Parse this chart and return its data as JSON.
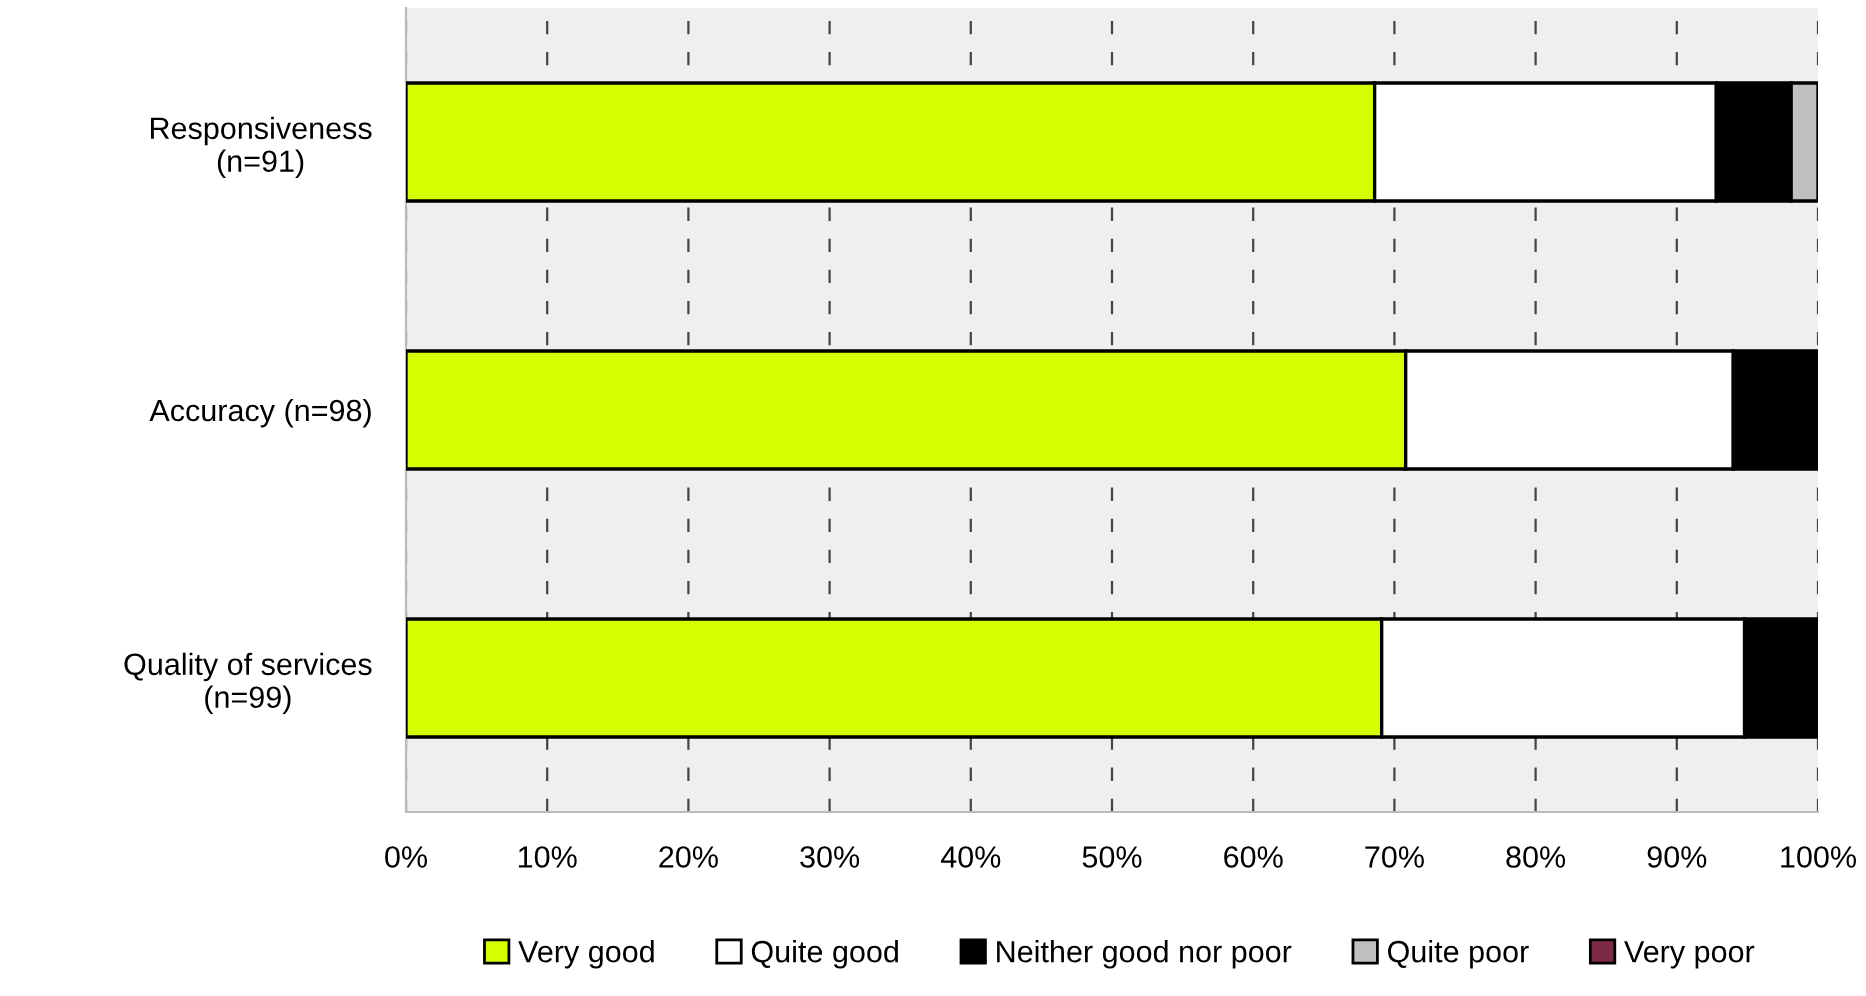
{
  "chart_data": {
    "type": "bar",
    "orientation": "horizontal",
    "stacked": true,
    "categories": [
      "Responsiveness\n(n=91)",
      "Accuracy (n=98)",
      "Quality of services\n(n=99)"
    ],
    "series": [
      {
        "name": "Very good",
        "color": "#d4ff00",
        "values": [
          68.6,
          70.8,
          69.1
        ]
      },
      {
        "name": "Quite good",
        "color": "#ffffff",
        "values": [
          24.2,
          23.2,
          25.7
        ]
      },
      {
        "name": "Neither good nor poor",
        "color": "#000000",
        "values": [
          5.3,
          6.0,
          5.2
        ]
      },
      {
        "name": "Quite poor",
        "color": "#c0c0c0",
        "values": [
          1.9,
          0,
          0
        ]
      },
      {
        "name": "Very poor",
        "color": "#7b2a45",
        "values": [
          0,
          0,
          0
        ]
      }
    ],
    "xlim": [
      0,
      100
    ],
    "xticks": [
      {
        "value": 0,
        "label": "0%"
      },
      {
        "value": 10,
        "label": "10%"
      },
      {
        "value": 20,
        "label": "20%"
      },
      {
        "value": 30,
        "label": "30%"
      },
      {
        "value": 40,
        "label": "40%"
      },
      {
        "value": 50,
        "label": "50%"
      },
      {
        "value": 60,
        "label": "60%"
      },
      {
        "value": 70,
        "label": "70%"
      },
      {
        "value": 80,
        "label": "80%"
      },
      {
        "value": 90,
        "label": "90%"
      },
      {
        "value": 100,
        "label": "100%"
      }
    ],
    "grid": "x",
    "legend": "bottom"
  }
}
